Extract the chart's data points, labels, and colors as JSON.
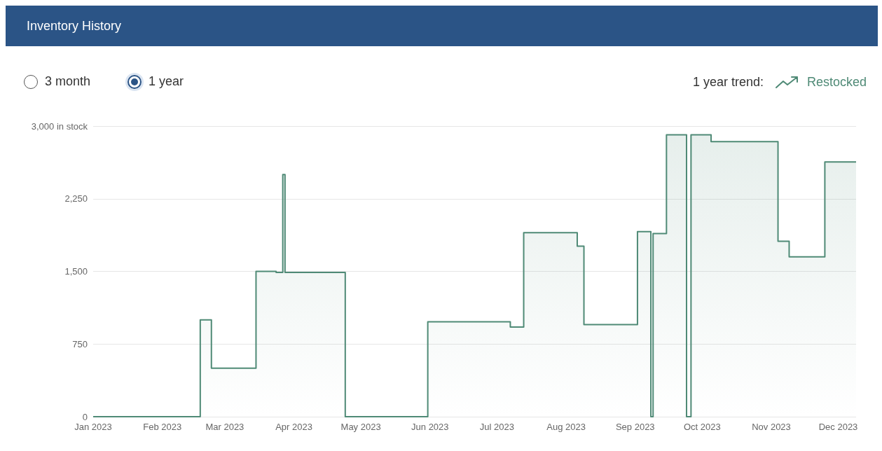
{
  "chart_data": {
    "type": "step",
    "title": "Inventory History",
    "annotations": [
      "3 month",
      "1 year",
      "1 year trend:",
      "Restocked"
    ],
    "x": [
      "2023-01-01",
      "2023-02-18",
      "2023-02-23",
      "2023-03-15",
      "2023-03-24",
      "2023-03-27",
      "2023-03-28",
      "2023-04-24",
      "2023-05-31",
      "2023-07-07",
      "2023-07-13",
      "2023-08-06",
      "2023-08-09",
      "2023-09-02",
      "2023-09-08",
      "2023-09-09",
      "2023-09-15",
      "2023-09-24",
      "2023-09-26",
      "2023-10-05",
      "2023-11-04",
      "2023-11-09",
      "2023-11-25",
      "2023-12-09"
    ],
    "series": [
      {
        "color": "#4f8a76",
        "values": [
          0,
          1000,
          500,
          1500,
          1490,
          2500,
          1490,
          0,
          980,
          925,
          1900,
          1760,
          950,
          1910,
          0,
          1890,
          2910,
          0,
          2910,
          2840,
          1810,
          1650,
          2630,
          2630
        ]
      }
    ],
    "xlim": [
      "2023-01-01",
      "2023-12-09"
    ],
    "xticks": [
      {
        "value": "2023-01-01",
        "label": "Jan 2023"
      },
      {
        "value": "2023-02-01",
        "label": "Feb 2023"
      },
      {
        "value": "2023-03-01",
        "label": "Mar 2023"
      },
      {
        "value": "2023-04-01",
        "label": "Apr 2023"
      },
      {
        "value": "2023-05-01",
        "label": "May 2023"
      },
      {
        "value": "2023-06-01",
        "label": "Jun 2023"
      },
      {
        "value": "2023-07-01",
        "label": "Jul 2023"
      },
      {
        "value": "2023-08-01",
        "label": "Aug 2023"
      },
      {
        "value": "2023-09-01",
        "label": "Sep 2023"
      },
      {
        "value": "2023-10-01",
        "label": "Oct 2023"
      },
      {
        "value": "2023-11-01",
        "label": "Nov 2023"
      },
      {
        "value": "2023-12-01",
        "label": "Dec 2023"
      }
    ],
    "ylim": [
      0,
      3000
    ],
    "yticks": [
      0,
      750,
      {
        "value": 1500,
        "label": "1,500"
      },
      {
        "value": 2250,
        "label": "2,250"
      },
      {
        "value": 3000,
        "label": "3,000 in stock"
      }
    ],
    "grid": "y",
    "marker": "none",
    "line_style": "solid"
  }
}
